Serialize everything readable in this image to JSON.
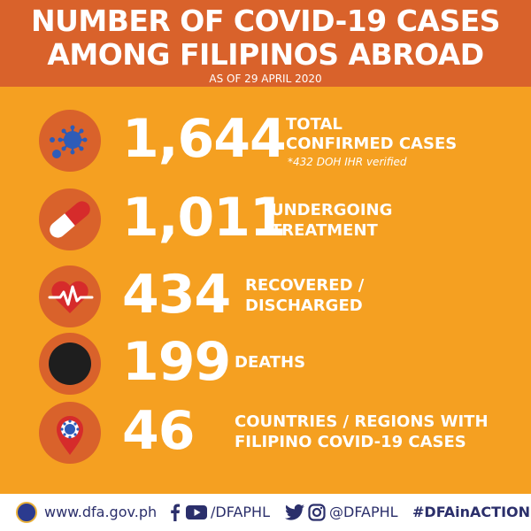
{
  "header": {
    "title_line1": "NUMBER OF COVID-19 CASES",
    "title_line2": "AMONG FILIPINOS ABROAD",
    "subtitle": "AS OF 29 APRIL 2020"
  },
  "stats": [
    {
      "number": "1,644",
      "label_line1": "TOTAL",
      "label_line2": "CONFIRMED CASES",
      "note": "*432 DOH IHR verified",
      "icon": "virus-icon"
    },
    {
      "number": "1,011",
      "label_line1": "UNDERGOING",
      "label_line2": "TREATMENT",
      "icon": "pill-capsule-icon"
    },
    {
      "number": "434",
      "label_line1": "RECOVERED /",
      "label_line2": "DISCHARGED",
      "icon": "heartbeat-icon"
    },
    {
      "number": "199",
      "label_line1": "DEATHS",
      "icon": "black-circle-icon"
    },
    {
      "number": "46",
      "label_line1": "COUNTRIES / REGIONS WITH",
      "label_line2": "FILIPINO COVID-19 CASES",
      "icon": "map-pin-virus-icon"
    }
  ],
  "footer": {
    "website": "www.dfa.gov.ph",
    "facebook_youtube_handle": "/DFAPHL",
    "twitter_instagram_handle": "@DFAPHL",
    "hashtag": "#DFAinACTION"
  },
  "colors": {
    "background": "#F5A021",
    "header": "#D9622B",
    "icon_circle": "#D9622B",
    "text": "#FFFFFF",
    "footer_text": "#2B2F6B"
  }
}
